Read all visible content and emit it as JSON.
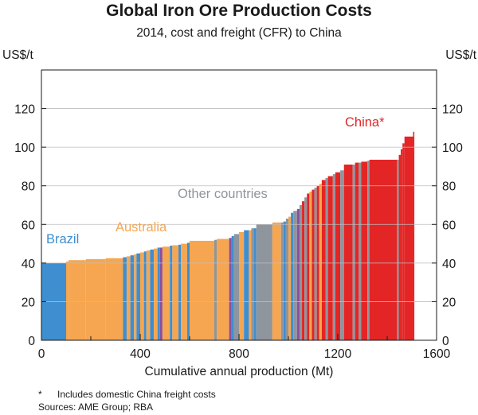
{
  "chart_data": {
    "type": "bar",
    "title": "Global Iron Ore Production Costs",
    "subtitle": "2014, cost and freight (CFR) to China",
    "ylabel": "US$/t",
    "ylabel_right": "US$/t",
    "xlabel": "Cumulative annual production (Mt)",
    "xlim": [
      0,
      1600
    ],
    "ylim": [
      0,
      140
    ],
    "x_ticks": [
      "0",
      "400",
      "800",
      "1200",
      "1600"
    ],
    "y_ticks": [
      "0",
      "20",
      "40",
      "60",
      "80",
      "100",
      "120"
    ],
    "series_labels": [
      {
        "name": "Brazil",
        "color": "#3e8ed0"
      },
      {
        "name": "Australia",
        "color": "#f6a650"
      },
      {
        "name": "Other countries",
        "color": "#8f959d"
      },
      {
        "name": "China*",
        "color": "#e42525"
      }
    ],
    "colors": {
      "Brazil": "#3e8ed0",
      "Australia": "#f6a650",
      "Other": "#8f959d",
      "China": "#e42525",
      "Other2": "#8a4fa0"
    },
    "segments": [
      {
        "start": 0,
        "end": 100,
        "value": 40,
        "region": "Brazil"
      },
      {
        "start": 100,
        "end": 110,
        "value": 40.8,
        "region": "Australia"
      },
      {
        "start": 110,
        "end": 180,
        "value": 41.5,
        "region": "Australia"
      },
      {
        "start": 180,
        "end": 260,
        "value": 42,
        "region": "Australia"
      },
      {
        "start": 260,
        "end": 330,
        "value": 42.5,
        "region": "Australia"
      },
      {
        "start": 330,
        "end": 345,
        "value": 43,
        "region": "Brazil"
      },
      {
        "start": 345,
        "end": 360,
        "value": 43.5,
        "region": "Australia"
      },
      {
        "start": 360,
        "end": 375,
        "value": 44,
        "region": "Brazil"
      },
      {
        "start": 375,
        "end": 385,
        "value": 44.5,
        "region": "Australia"
      },
      {
        "start": 385,
        "end": 400,
        "value": 45,
        "region": "Brazil"
      },
      {
        "start": 400,
        "end": 415,
        "value": 45.5,
        "region": "Australia"
      },
      {
        "start": 415,
        "end": 425,
        "value": 46,
        "region": "Brazil"
      },
      {
        "start": 425,
        "end": 440,
        "value": 46.5,
        "region": "Australia"
      },
      {
        "start": 440,
        "end": 455,
        "value": 47,
        "region": "Brazil"
      },
      {
        "start": 455,
        "end": 470,
        "value": 47.5,
        "region": "Australia"
      },
      {
        "start": 470,
        "end": 480,
        "value": 48,
        "region": "Brazil"
      },
      {
        "start": 480,
        "end": 490,
        "value": 48,
        "region": "Other2"
      },
      {
        "start": 490,
        "end": 520,
        "value": 48.5,
        "region": "Australia"
      },
      {
        "start": 520,
        "end": 530,
        "value": 49,
        "region": "Brazil"
      },
      {
        "start": 530,
        "end": 555,
        "value": 49.2,
        "region": "Australia"
      },
      {
        "start": 555,
        "end": 565,
        "value": 49.5,
        "region": "Brazil"
      },
      {
        "start": 565,
        "end": 590,
        "value": 50,
        "region": "Australia"
      },
      {
        "start": 590,
        "end": 600,
        "value": 50.5,
        "region": "Brazil"
      },
      {
        "start": 600,
        "end": 700,
        "value": 51.5,
        "region": "Australia"
      },
      {
        "start": 700,
        "end": 710,
        "value": 52,
        "region": "Other"
      },
      {
        "start": 710,
        "end": 760,
        "value": 52.5,
        "region": "Australia"
      },
      {
        "start": 760,
        "end": 770,
        "value": 53,
        "region": "Other2"
      },
      {
        "start": 770,
        "end": 780,
        "value": 54,
        "region": "Brazil"
      },
      {
        "start": 780,
        "end": 800,
        "value": 55,
        "region": "Other"
      },
      {
        "start": 800,
        "end": 820,
        "value": 56,
        "region": "Australia"
      },
      {
        "start": 820,
        "end": 840,
        "value": 57,
        "region": "Brazil"
      },
      {
        "start": 840,
        "end": 850,
        "value": 57,
        "region": "Australia"
      },
      {
        "start": 850,
        "end": 860,
        "value": 58,
        "region": "Other"
      },
      {
        "start": 860,
        "end": 870,
        "value": 58,
        "region": "Brazil"
      },
      {
        "start": 870,
        "end": 935,
        "value": 60,
        "region": "Other"
      },
      {
        "start": 935,
        "end": 970,
        "value": 61,
        "region": "Australia"
      },
      {
        "start": 970,
        "end": 980,
        "value": 61,
        "region": "Other"
      },
      {
        "start": 980,
        "end": 990,
        "value": 61.5,
        "region": "Brazil"
      },
      {
        "start": 990,
        "end": 1000,
        "value": 63,
        "region": "Other"
      },
      {
        "start": 1000,
        "end": 1010,
        "value": 64,
        "region": "Australia"
      },
      {
        "start": 1010,
        "end": 1020,
        "value": 66,
        "region": "Brazil"
      },
      {
        "start": 1020,
        "end": 1035,
        "value": 67,
        "region": "Other"
      },
      {
        "start": 1035,
        "end": 1045,
        "value": 68,
        "region": "Other2"
      },
      {
        "start": 1045,
        "end": 1055,
        "value": 70,
        "region": "Other"
      },
      {
        "start": 1055,
        "end": 1065,
        "value": 72,
        "region": "China"
      },
      {
        "start": 1065,
        "end": 1075,
        "value": 74,
        "region": "Other"
      },
      {
        "start": 1075,
        "end": 1085,
        "value": 76,
        "region": "China"
      },
      {
        "start": 1085,
        "end": 1095,
        "value": 77,
        "region": "Australia"
      },
      {
        "start": 1095,
        "end": 1105,
        "value": 78,
        "region": "China"
      },
      {
        "start": 1105,
        "end": 1115,
        "value": 79,
        "region": "Other"
      },
      {
        "start": 1115,
        "end": 1125,
        "value": 80,
        "region": "China"
      },
      {
        "start": 1125,
        "end": 1135,
        "value": 81,
        "region": "Australia"
      },
      {
        "start": 1135,
        "end": 1150,
        "value": 83,
        "region": "China"
      },
      {
        "start": 1150,
        "end": 1160,
        "value": 84,
        "region": "Other"
      },
      {
        "start": 1160,
        "end": 1180,
        "value": 85,
        "region": "China"
      },
      {
        "start": 1180,
        "end": 1190,
        "value": 86,
        "region": "Other"
      },
      {
        "start": 1190,
        "end": 1210,
        "value": 87,
        "region": "China"
      },
      {
        "start": 1210,
        "end": 1225,
        "value": 88,
        "region": "Other"
      },
      {
        "start": 1225,
        "end": 1260,
        "value": 91,
        "region": "China"
      },
      {
        "start": 1260,
        "end": 1270,
        "value": 91,
        "region": "Other"
      },
      {
        "start": 1270,
        "end": 1285,
        "value": 92,
        "region": "China"
      },
      {
        "start": 1285,
        "end": 1295,
        "value": 92,
        "region": "Other"
      },
      {
        "start": 1295,
        "end": 1320,
        "value": 92.5,
        "region": "China"
      },
      {
        "start": 1320,
        "end": 1328,
        "value": 93,
        "region": "Other"
      },
      {
        "start": 1328,
        "end": 1440,
        "value": 93.5,
        "region": "China"
      },
      {
        "start": 1440,
        "end": 1447,
        "value": 93.5,
        "region": "Other"
      },
      {
        "start": 1447,
        "end": 1455,
        "value": 96,
        "region": "China"
      },
      {
        "start": 1455,
        "end": 1462,
        "value": 99,
        "region": "China"
      },
      {
        "start": 1462,
        "end": 1470,
        "value": 102,
        "region": "China"
      },
      {
        "start": 1470,
        "end": 1505,
        "value": 105.5,
        "region": "China"
      },
      {
        "start": 1505,
        "end": 1510,
        "value": 108,
        "region": "China"
      }
    ]
  },
  "footnotes": {
    "mark": "*",
    "note": "Includes domestic China freight costs",
    "sources": "Sources: AME Group; RBA"
  }
}
